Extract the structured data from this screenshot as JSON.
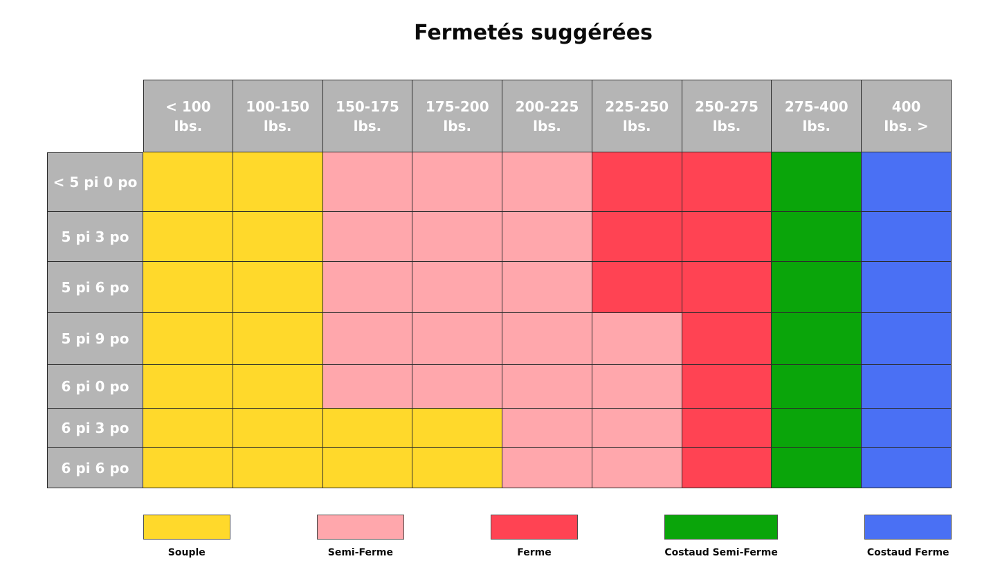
{
  "title": "Fermetés suggérées",
  "palette": {
    "souple": "#FFD92B",
    "semi_ferme": "#FFA7AC",
    "ferme": "#FF4353",
    "costaud_semi_ferme": "#0AA50A",
    "costaud_ferme": "#4A70F4",
    "header_bg": "#B5B5B5",
    "header_text": "#FFFFFF",
    "grid_line": "#2B2B2B",
    "background": "#FFFFFF"
  },
  "chart_data": {
    "type": "heatmap",
    "title": "Fermetés suggérées",
    "columns": [
      [
        "< 100",
        "lbs."
      ],
      [
        "100-150",
        "lbs."
      ],
      [
        "150-175",
        "lbs."
      ],
      [
        "175-200",
        "lbs."
      ],
      [
        "200-225",
        "lbs."
      ],
      [
        "225-250",
        "lbs."
      ],
      [
        "250-275",
        "lbs."
      ],
      [
        "275-400",
        "lbs."
      ],
      [
        "400",
        "lbs. >"
      ]
    ],
    "rows": [
      "< 5 pi 0 po",
      "5 pi 3 po",
      "5 pi 6 po",
      "5 pi 9 po",
      "6 pi 0 po",
      "6 pi 3 po",
      "6 pi 6 po"
    ],
    "cells": [
      [
        "souple",
        "souple",
        "semi_ferme",
        "semi_ferme",
        "semi_ferme",
        "ferme",
        "ferme",
        "costaud_semi_ferme",
        "costaud_ferme"
      ],
      [
        "souple",
        "souple",
        "semi_ferme",
        "semi_ferme",
        "semi_ferme",
        "ferme",
        "ferme",
        "costaud_semi_ferme",
        "costaud_ferme"
      ],
      [
        "souple",
        "souple",
        "semi_ferme",
        "semi_ferme",
        "semi_ferme",
        "ferme",
        "ferme",
        "costaud_semi_ferme",
        "costaud_ferme"
      ],
      [
        "souple",
        "souple",
        "semi_ferme",
        "semi_ferme",
        "semi_ferme",
        "semi_ferme",
        "ferme",
        "costaud_semi_ferme",
        "costaud_ferme"
      ],
      [
        "souple",
        "souple",
        "semi_ferme",
        "semi_ferme",
        "semi_ferme",
        "semi_ferme",
        "ferme",
        "costaud_semi_ferme",
        "costaud_ferme"
      ],
      [
        "souple",
        "souple",
        "souple",
        "souple",
        "semi_ferme",
        "semi_ferme",
        "ferme",
        "costaud_semi_ferme",
        "costaud_ferme"
      ],
      [
        "souple",
        "souple",
        "souple",
        "souple",
        "semi_ferme",
        "semi_ferme",
        "ferme",
        "costaud_semi_ferme",
        "costaud_ferme"
      ]
    ],
    "legend": [
      {
        "label": "Souple",
        "key": "souple"
      },
      {
        "label": "Semi-Ferme",
        "key": "semi_ferme"
      },
      {
        "label": "Ferme",
        "key": "ferme"
      },
      {
        "label": "Costaud Semi-Ferme",
        "key": "costaud_semi_ferme"
      },
      {
        "label": "Costaud Ferme",
        "key": "costaud_ferme"
      }
    ],
    "legend_position": "bottom",
    "grid": true
  }
}
